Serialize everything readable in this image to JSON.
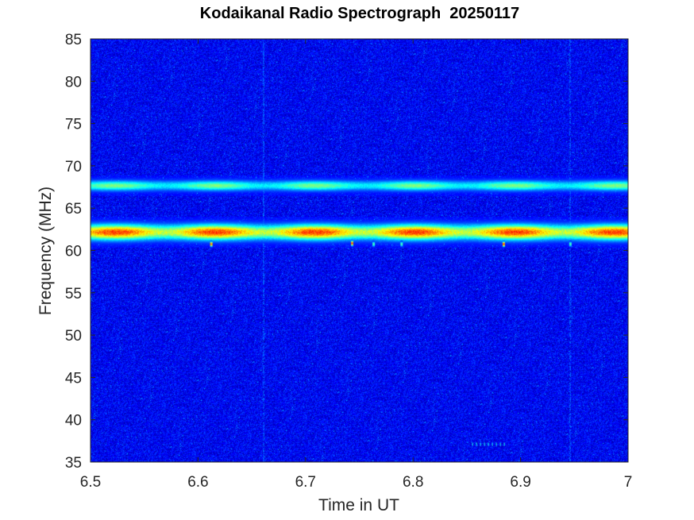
{
  "chart_data": {
    "type": "heatmap",
    "title": "Kodaikanal Radio Spectrograph  20250117",
    "xlabel": "Time in UT",
    "ylabel": "Frequency (MHz)",
    "xlim": [
      6.5,
      7.0
    ],
    "ylim": [
      35,
      85
    ],
    "x_ticks": [
      "6.5",
      "6.6",
      "6.7",
      "6.8",
      "6.9",
      "7"
    ],
    "x_tick_values": [
      6.5,
      6.6,
      6.7,
      6.8,
      6.9,
      7.0
    ],
    "y_ticks": [
      "35",
      "40",
      "45",
      "50",
      "55",
      "60",
      "65",
      "70",
      "75",
      "80",
      "85"
    ],
    "y_tick_values": [
      35,
      40,
      45,
      50,
      55,
      60,
      65,
      70,
      75,
      80,
      85
    ],
    "colormap": "jet",
    "background_level": 0.12,
    "grid": false,
    "features": [
      {
        "kind": "persistent_band",
        "freq_mhz": 67.7,
        "width_mhz": 0.4,
        "intensity": 0.5
      },
      {
        "kind": "persistent_band",
        "freq_mhz": 62.2,
        "width_mhz": 0.6,
        "intensity": 0.82
      },
      {
        "kind": "spike",
        "time_ut": 6.612,
        "freq_mhz": 60.8,
        "intensity": 0.75
      },
      {
        "kind": "spike",
        "time_ut": 6.743,
        "freq_mhz": 60.9,
        "intensity": 0.8
      },
      {
        "kind": "spike",
        "time_ut": 6.763,
        "freq_mhz": 60.8,
        "intensity": 0.45
      },
      {
        "kind": "spike",
        "time_ut": 6.789,
        "freq_mhz": 60.8,
        "intensity": 0.45
      },
      {
        "kind": "spike",
        "time_ut": 6.884,
        "freq_mhz": 60.8,
        "intensity": 0.8
      },
      {
        "kind": "spike",
        "time_ut": 6.946,
        "freq_mhz": 60.8,
        "intensity": 0.45
      },
      {
        "kind": "faint_column",
        "time_ut": 6.661,
        "intensity": 0.22
      },
      {
        "kind": "faint_column",
        "time_ut": 6.946,
        "intensity": 0.22
      },
      {
        "kind": "faint_dots",
        "time_range_ut": [
          6.855,
          6.885
        ],
        "freq_mhz": 37.1,
        "intensity": 0.4
      }
    ]
  }
}
